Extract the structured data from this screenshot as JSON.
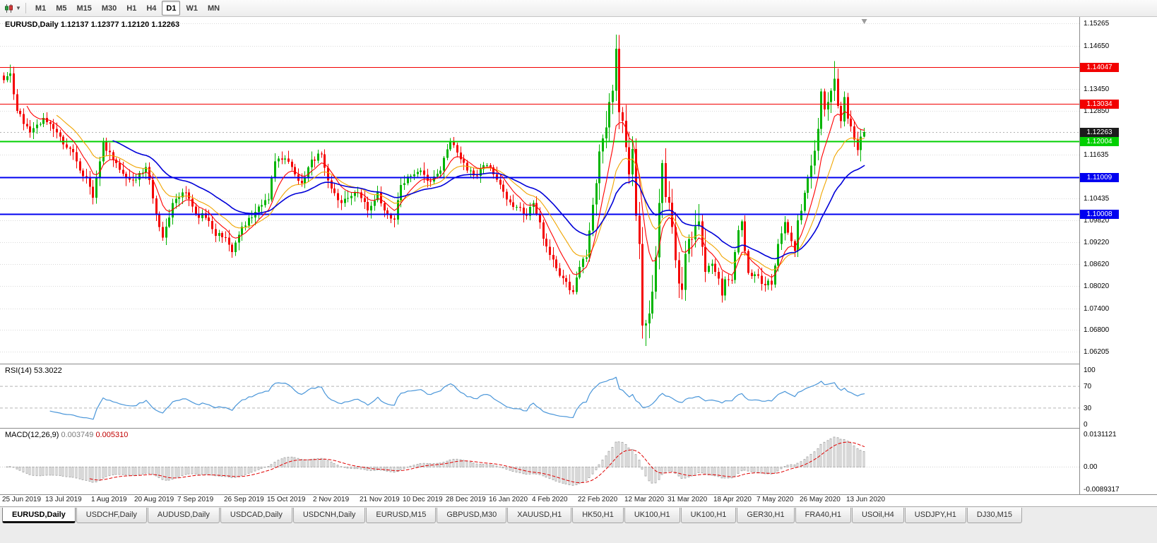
{
  "toolbar": {
    "timeframes": [
      "M1",
      "M5",
      "M15",
      "M30",
      "H1",
      "H4",
      "D1",
      "W1",
      "MN"
    ],
    "active_timeframe": "D1"
  },
  "header": {
    "title_line": "EURUSD,Daily 1.12137 1.12377 1.12120 1.12263"
  },
  "price_axis": {
    "grid_labels": [
      "1.15265",
      "1.14650",
      "1.13450",
      "1.12850",
      "1.11635",
      "1.10435",
      "1.09820",
      "1.09220",
      "1.08620",
      "1.08020",
      "1.07400",
      "1.06800",
      "1.06205"
    ],
    "current_label": "1.12263"
  },
  "levels": [
    {
      "value": 1.14047,
      "label": "1.14047",
      "color": "#f20000",
      "width": 1
    },
    {
      "value": 1.13034,
      "label": "1.13034",
      "color": "#f20000",
      "width": 1
    },
    {
      "value": 1.12004,
      "label": "1.12004",
      "color": "#00d000",
      "width": 2
    },
    {
      "value": 1.11009,
      "label": "1.11009",
      "color": "#0000f0",
      "width": 2
    },
    {
      "value": 1.10008,
      "label": "1.10008",
      "color": "#0000f0",
      "width": 2
    }
  ],
  "rsi": {
    "label": "RSI(14)",
    "value": "53.3022",
    "axis_labels": [
      "100",
      "70",
      "30",
      "0"
    ],
    "guide_levels": [
      70,
      30
    ]
  },
  "macd": {
    "label": "MACD(12,26,9)",
    "value_main": "0.003749",
    "value_signal": "0.005310",
    "axis_top": "0.0131121",
    "axis_zero": "0.00",
    "axis_bottom": "-0.0089317"
  },
  "dates": [
    {
      "text": "25 Jun 2019",
      "index": 0
    },
    {
      "text": "13 Jul 2019",
      "index": 13
    },
    {
      "text": "1 Aug 2019",
      "index": 27
    },
    {
      "text": "20 Aug 2019",
      "index": 40
    },
    {
      "text": "7 Sep 2019",
      "index": 53
    },
    {
      "text": "26 Sep 2019",
      "index": 67
    },
    {
      "text": "15 Oct 2019",
      "index": 80
    },
    {
      "text": "2 Nov 2019",
      "index": 94
    },
    {
      "text": "21 Nov 2019",
      "index": 108
    },
    {
      "text": "10 Dec 2019",
      "index": 121
    },
    {
      "text": "28 Dec 2019",
      "index": 134
    },
    {
      "text": "16 Jan 2020",
      "index": 147
    },
    {
      "text": "4 Feb 2020",
      "index": 160
    },
    {
      "text": "22 Feb 2020",
      "index": 174
    },
    {
      "text": "12 Mar 2020",
      "index": 188
    },
    {
      "text": "31 Mar 2020",
      "index": 201
    },
    {
      "text": "18 Apr 2020",
      "index": 215
    },
    {
      "text": "7 May 2020",
      "index": 228
    },
    {
      "text": "26 May 2020",
      "index": 241
    },
    {
      "text": "13 Jun 2020",
      "index": 255
    }
  ],
  "tabs": {
    "items": [
      "EURUSD,Daily",
      "USDCHF,Daily",
      "AUDUSD,Daily",
      "USDCAD,Daily",
      "USDCNH,Daily",
      "EURUSD,M15",
      "GBPUSD,M30",
      "XAUUSD,H1",
      "HK50,H1",
      "UK100,H1",
      "UK100,H1",
      "GER30,H1",
      "FRA40,H1",
      "USOil,H4",
      "USDJPY,H1",
      "DJ30,M15"
    ],
    "active_index": 0
  },
  "colors": {
    "candle_up": "#00b400",
    "candle_down": "#f40000",
    "grid": "#d9d9d9",
    "current_price_line": "#b4b4b4",
    "current_badge_bg": "#1c1c1c"
  },
  "chart_data": {
    "type": "candlestick",
    "symbol": "EURUSD",
    "timeframe": "Daily",
    "current_ohlc": {
      "open": 1.12137,
      "high": 1.12377,
      "low": 1.1212,
      "close": 1.12263
    },
    "current_price": 1.12263,
    "n_candles": 261,
    "price_range": [
      1.0587,
      1.1544
    ],
    "close_keypoints": [
      [
        0,
        1.137
      ],
      [
        2,
        1.1388
      ],
      [
        4,
        1.1285
      ],
      [
        8,
        1.1225
      ],
      [
        12,
        1.1265
      ],
      [
        16,
        1.1225
      ],
      [
        20,
        1.118
      ],
      [
        22,
        1.1145
      ],
      [
        26,
        1.1075
      ],
      [
        27,
        1.1045
      ],
      [
        30,
        1.12
      ],
      [
        33,
        1.115
      ],
      [
        37,
        1.11
      ],
      [
        40,
        1.1095
      ],
      [
        43,
        1.113
      ],
      [
        46,
        1.1
      ],
      [
        48,
        1.0935
      ],
      [
        51,
        1.103
      ],
      [
        55,
        1.106
      ],
      [
        58,
        1.1
      ],
      [
        61,
        1.099
      ],
      [
        64,
        1.094
      ],
      [
        67,
        1.0935
      ],
      [
        69,
        1.0895
      ],
      [
        72,
        1.0965
      ],
      [
        75,
        1.099
      ],
      [
        78,
        1.1025
      ],
      [
        80,
        1.104
      ],
      [
        82,
        1.1145
      ],
      [
        84,
        1.115
      ],
      [
        87,
        1.113
      ],
      [
        90,
        1.1085
      ],
      [
        93,
        1.115
      ],
      [
        96,
        1.1165
      ],
      [
        99,
        1.107
      ],
      [
        102,
        1.103
      ],
      [
        105,
        1.105
      ],
      [
        107,
        1.106
      ],
      [
        110,
        1.101
      ],
      [
        113,
        1.106
      ],
      [
        115,
        1.101
      ],
      [
        118,
        1.0985
      ],
      [
        120,
        1.108
      ],
      [
        123,
        1.1105
      ],
      [
        126,
        1.112
      ],
      [
        129,
        1.109
      ],
      [
        132,
        1.112
      ],
      [
        135,
        1.12
      ],
      [
        137,
        1.117
      ],
      [
        140,
        1.112
      ],
      [
        143,
        1.1105
      ],
      [
        146,
        1.1135
      ],
      [
        149,
        1.1095
      ],
      [
        152,
        1.104
      ],
      [
        155,
        1.102
      ],
      [
        158,
        1.0995
      ],
      [
        160,
        1.103
      ],
      [
        161,
        1.1
      ],
      [
        164,
        1.091
      ],
      [
        168,
        1.083
      ],
      [
        172,
        1.0785
      ],
      [
        174,
        1.0854
      ],
      [
        176,
        1.088
      ],
      [
        178,
        1.1026
      ],
      [
        180,
        1.1173
      ],
      [
        182,
        1.1239
      ],
      [
        184,
        1.134
      ],
      [
        185,
        1.1456
      ],
      [
        186,
        1.1281
      ],
      [
        188,
        1.1184
      ],
      [
        189,
        1.1109
      ],
      [
        190,
        1.118
      ],
      [
        191,
        1.0995
      ],
      [
        192,
        1.0917
      ],
      [
        193,
        1.0692
      ],
      [
        194,
        1.0698
      ],
      [
        195,
        1.0725
      ],
      [
        196,
        1.0786
      ],
      [
        197,
        1.088
      ],
      [
        198,
        1.103
      ],
      [
        199,
        1.1141
      ],
      [
        200,
        1.1047
      ],
      [
        201,
        1.1031
      ],
      [
        202,
        1.0964
      ],
      [
        204,
        1.0808
      ],
      [
        205,
        1.0791
      ],
      [
        206,
        1.089
      ],
      [
        208,
        1.093
      ],
      [
        210,
        1.098
      ],
      [
        211,
        1.091
      ],
      [
        212,
        1.084
      ],
      [
        214,
        1.0863
      ],
      [
        216,
        1.0822
      ],
      [
        217,
        1.0775
      ],
      [
        218,
        1.082
      ],
      [
        220,
        1.0818
      ],
      [
        222,
        1.0955
      ],
      [
        223,
        1.098
      ],
      [
        225,
        1.0837
      ],
      [
        227,
        1.0834
      ],
      [
        229,
        1.0807
      ],
      [
        231,
        1.0816
      ],
      [
        232,
        1.0805
      ],
      [
        234,
        1.0917
      ],
      [
        236,
        1.0978
      ],
      [
        237,
        1.0949
      ],
      [
        239,
        1.0898
      ],
      [
        240,
        1.0983
      ],
      [
        241,
        1.1009
      ],
      [
        243,
        1.1101
      ],
      [
        244,
        1.1134
      ],
      [
        246,
        1.1235
      ],
      [
        247,
        1.1338
      ],
      [
        248,
        1.1289
      ],
      [
        250,
        1.134
      ],
      [
        251,
        1.1373
      ],
      [
        252,
        1.1298
      ],
      [
        253,
        1.1256
      ],
      [
        254,
        1.1323
      ],
      [
        255,
        1.1263
      ],
      [
        257,
        1.1206
      ],
      [
        258,
        1.1177
      ],
      [
        259,
        1.12137
      ],
      [
        260,
        1.12263
      ]
    ],
    "wick_overrides": [
      [
        2,
        "h",
        1.1412
      ],
      [
        27,
        "l",
        1.1027
      ],
      [
        48,
        "l",
        1.0926
      ],
      [
        69,
        "l",
        1.0879
      ],
      [
        172,
        "l",
        1.0778
      ],
      [
        185,
        "h",
        1.1495
      ],
      [
        193,
        "l",
        1.0656
      ],
      [
        194,
        "l",
        1.0636
      ],
      [
        251,
        "h",
        1.1422
      ]
    ],
    "indicators": {
      "ma_fast": {
        "period": 8,
        "color": "#ff0000"
      },
      "ma_mid": {
        "period": 17,
        "color": "#f0a500"
      },
      "ma_slow": {
        "period": 34,
        "color": "#0000d8"
      },
      "rsi": {
        "period": 14,
        "color": "#4a96d9"
      },
      "macd": {
        "fast": 12,
        "slow": 26,
        "signal": 9,
        "hist_color": "#a8a8a8",
        "signal_color": "#e00000"
      }
    }
  }
}
